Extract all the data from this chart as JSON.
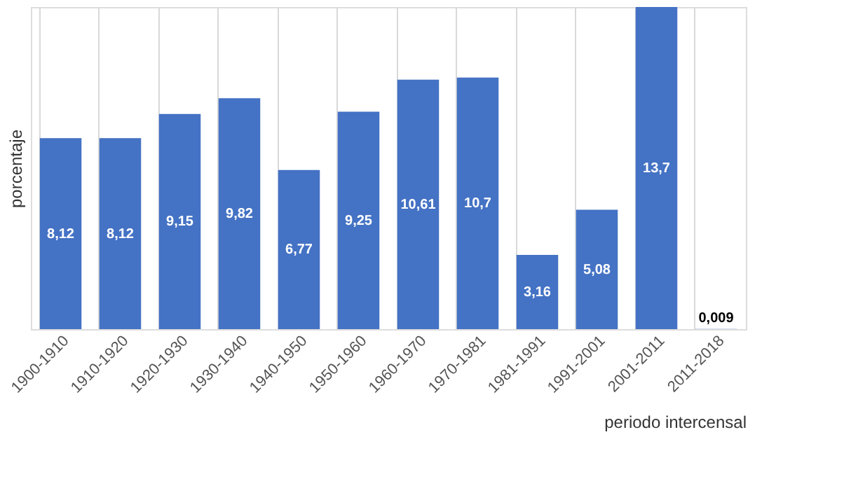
{
  "chart_data": {
    "type": "bar",
    "xlabel": "periodo intercensal",
    "ylabel": "porcentaje",
    "categories": [
      "1900-1910",
      "1910-1920",
      "1920-1930",
      "1930-1940",
      "1940-1950",
      "1950-1960",
      "1960-1970",
      "1970-1981",
      "1981-1991",
      "1991-2001",
      "2001-2011",
      "2011-2018"
    ],
    "values": [
      8.12,
      8.12,
      9.15,
      9.82,
      6.77,
      9.25,
      10.61,
      10.7,
      3.16,
      5.08,
      13.7,
      0.009
    ],
    "value_labels": [
      "8,12",
      "8,12",
      "9,15",
      "9,82",
      "6,77",
      "9,25",
      "10,61",
      "10,7",
      "3,16",
      "5,08",
      "13,7",
      "0,009"
    ],
    "color": "#4472c4",
    "grid": "x"
  }
}
